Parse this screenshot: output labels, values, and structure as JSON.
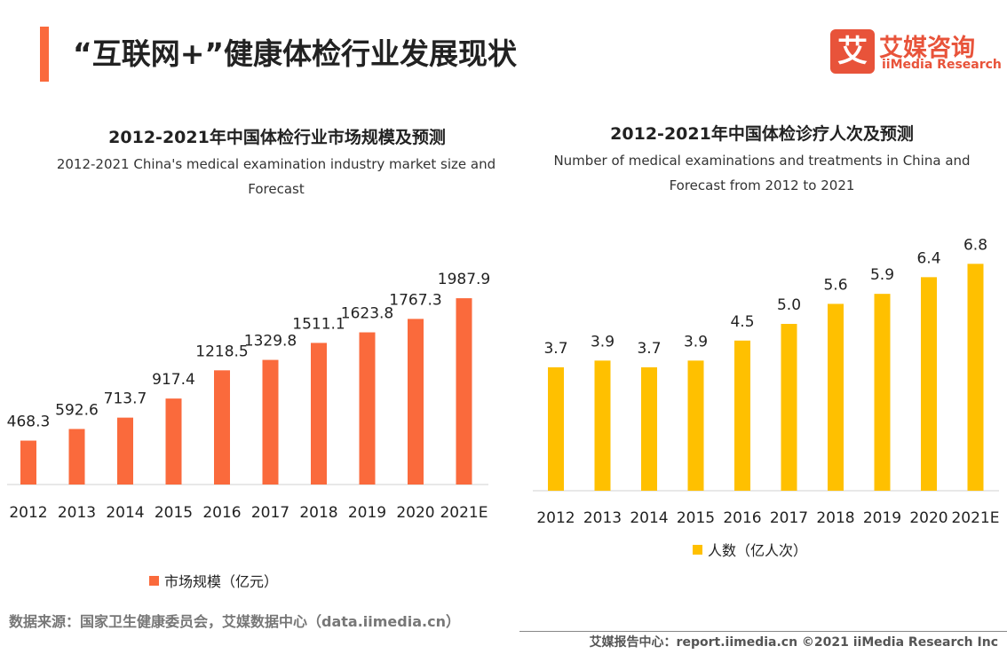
{
  "header": {
    "title": "“互联网+”健康体检行业发展现状",
    "logo_cn": "艾媒咨询",
    "logo_en": "iiMedia Research",
    "logo_mark": "艾"
  },
  "chart_data": [
    {
      "type": "bar",
      "title": "2012-2021年中国体检行业市场规模及预测",
      "subtitle": "2012-2021 China's medical examination industry market size and Forecast",
      "categories": [
        "2012",
        "2013",
        "2014",
        "2015",
        "2016",
        "2017",
        "2018",
        "2019",
        "2020",
        "2021E"
      ],
      "series": [
        {
          "name": "市场规模（亿元）",
          "color": "#fa6a3c",
          "values": [
            468.3,
            592.6,
            713.7,
            917.4,
            1218.5,
            1329.8,
            1511.1,
            1623.8,
            1767.3,
            1987.9
          ]
        }
      ]
    },
    {
      "type": "bar",
      "title": "2012-2021年中国体检诊疗人次及预测",
      "subtitle": "Number of medical examinations and treatments in China and Forecast from 2012 to 2021",
      "categories": [
        "2012",
        "2013",
        "2014",
        "2015",
        "2016",
        "2017",
        "2018",
        "2019",
        "2020",
        "2021E"
      ],
      "series": [
        {
          "name": "人数（亿人次）",
          "color": "#ffc000",
          "values": [
            3.7,
            3.9,
            3.7,
            3.9,
            4.5,
            5.0,
            5.6,
            5.9,
            6.4,
            6.8
          ],
          "value_labels": [
            "3.7",
            "3.9",
            "3.7",
            "3.9",
            "4.5",
            "5.0",
            "5.6",
            "5.9",
            "6.4",
            "6.8"
          ]
        }
      ]
    }
  ],
  "source": "数据来源：国家卫生健康委员会，艾媒数据中心（data.iimedia.cn）",
  "footer": "艾媒报告中心：report.iimedia.cn   ©2021  iiMedia Research  Inc"
}
